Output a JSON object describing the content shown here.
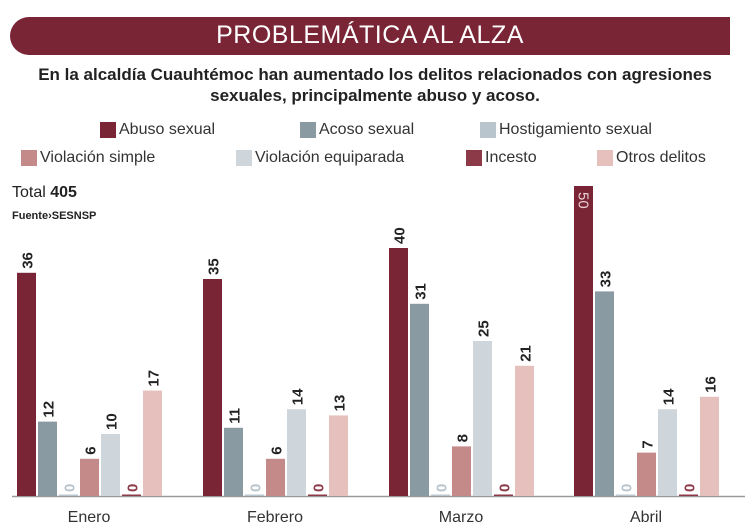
{
  "header": {
    "title": "PROBLEMÁTICA AL ALZA",
    "subtitle": "En la alcaldía Cuauhtémoc han aumentado los delitos relacionados con agresiones sexuales, principalmente abuso y acoso."
  },
  "total": {
    "label": "Total",
    "value": "405"
  },
  "source": {
    "label": "Fuente",
    "separator": "›",
    "value": "SESNSP"
  },
  "chart_data": {
    "type": "bar",
    "categories": [
      "Enero",
      "Febrero",
      "Marzo",
      "Abril"
    ],
    "ylim": [
      0,
      50
    ],
    "grid": false,
    "legend_position": "top",
    "series": [
      {
        "name": "Abuso sexual",
        "color": "#7a2535",
        "values": [
          36,
          35,
          40,
          50
        ]
      },
      {
        "name": "Acoso sexual",
        "color": "#8a9aa3",
        "values": [
          12,
          11,
          31,
          33
        ]
      },
      {
        "name": "Hostigamiento sexual",
        "color": "#b9c5cc",
        "values": [
          0,
          0,
          0,
          0
        ]
      },
      {
        "name": "Violación simple",
        "color": "#c48a8a",
        "values": [
          6,
          6,
          8,
          7
        ]
      },
      {
        "name": "Violación equiparada",
        "color": "#cfd6db",
        "values": [
          10,
          14,
          25,
          14
        ]
      },
      {
        "name": "Incesto",
        "color": "#8c3a48",
        "values": [
          0,
          0,
          0,
          0
        ]
      },
      {
        "name": "Otros delitos",
        "color": "#e6c0bd",
        "values": [
          17,
          13,
          21,
          16
        ]
      }
    ]
  }
}
